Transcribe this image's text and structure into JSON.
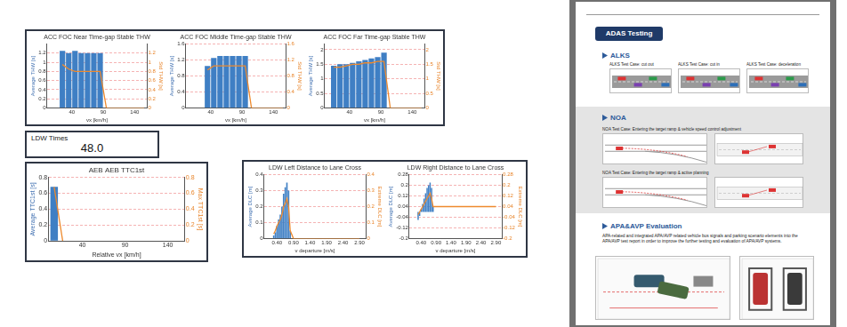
{
  "chart_data": [
    {
      "type": "bar",
      "title": "ACC FOC Near Time-gap Stable THW",
      "xlabel": "vx [km/h]",
      "ylabel": "Average THW [s]",
      "y2label": "Std THW [s]",
      "x": [
        25,
        35,
        45,
        55,
        65,
        75,
        85,
        95,
        105,
        115,
        125,
        135,
        145,
        155
      ],
      "series": [
        {
          "type": "bar",
          "color": "#3f7fc4",
          "values": [
            1.25,
            1.2,
            1.25,
            1.2,
            1.2,
            1.2,
            1.2,
            0,
            0,
            0,
            0,
            0,
            0,
            0
          ]
        },
        {
          "type": "line",
          "color": "#ee8a2e",
          "axis": "y2",
          "values": [
            0.95,
            0.85,
            0.8,
            0.8,
            0.8,
            0.8,
            0.8,
            0,
            0,
            0,
            0,
            0,
            0,
            0
          ]
        }
      ],
      "xlim": [
        0,
        160
      ],
      "xticks": [
        40,
        90,
        140
      ],
      "ylim": [
        0,
        1.4
      ],
      "yticks": [
        0,
        0.2,
        0.4,
        0.6,
        0.8,
        1,
        1.2
      ],
      "y2lim": [
        0,
        1.4
      ],
      "y2ticks": [
        0,
        0.2,
        0.4,
        0.6,
        0.8,
        1,
        1.2
      ],
      "grid": true
    },
    {
      "type": "bar",
      "title": "ACC FOC Middle Time-gap Stable THW",
      "xlabel": "vx [km/h]",
      "ylabel": "Average THW [s]",
      "y2label": "Std THW [s]",
      "x": [
        25,
        35,
        45,
        55,
        65,
        75,
        85,
        95,
        105,
        115,
        125,
        135,
        145,
        155
      ],
      "series": [
        {
          "type": "bar",
          "color": "#3f7fc4",
          "values": [
            null,
            1.05,
            1.25,
            1.3,
            1.3,
            1.3,
            1.3,
            1.3,
            0,
            0,
            0,
            0,
            0,
            0
          ]
        },
        {
          "type": "line",
          "color": "#ee8a2e",
          "axis": "y2",
          "values": [
            null,
            0.95,
            1.05,
            1.05,
            1.05,
            1.05,
            1.05,
            1.05,
            0,
            0,
            0,
            0,
            0,
            0
          ]
        }
      ],
      "xlim": [
        0,
        160
      ],
      "xticks": [
        40,
        90,
        140
      ],
      "ylim": [
        0,
        1.6
      ],
      "yticks": [
        0,
        0.4,
        0.8,
        1.2,
        1.6
      ],
      "y2lim": [
        0,
        1.6
      ],
      "y2ticks": [
        0,
        0.4,
        0.8,
        1.2,
        1.6
      ],
      "grid": true
    },
    {
      "type": "bar",
      "title": "ACC FOC Far Time-gap Stable THW",
      "xlabel": "vx [km/h]",
      "ylabel": "Average THW [s]",
      "y2label": "Std THW [s]",
      "x": [
        15,
        25,
        35,
        45,
        55,
        65,
        75,
        85,
        95,
        105,
        115,
        125,
        135,
        145,
        155
      ],
      "series": [
        {
          "type": "bar",
          "color": "#3f7fc4",
          "values": [
            1.45,
            1.5,
            1.5,
            1.55,
            1.6,
            1.65,
            1.7,
            1.75,
            1.9,
            0,
            0,
            0,
            0,
            0,
            0
          ]
        },
        {
          "type": "line",
          "color": "#ee8a2e",
          "axis": "y2",
          "values": [
            1.4,
            1.4,
            1.45,
            1.5,
            1.5,
            1.55,
            1.55,
            1.6,
            1.6,
            0,
            0,
            0,
            0,
            0,
            0
          ]
        }
      ],
      "xlim": [
        0,
        160
      ],
      "xticks": [
        40,
        90,
        140
      ],
      "ylim": [
        0,
        2.2
      ],
      "yticks": [
        0,
        0.5,
        1,
        1.5,
        2
      ],
      "y2lim": [
        0,
        2.2
      ],
      "y2ticks": [
        0,
        0.5,
        1,
        1.5,
        2
      ],
      "grid": true
    },
    {
      "type": "bar",
      "title": "AEB AEB TTC1st",
      "xlabel": "Relative vx [km/h]",
      "ylabel": "Average TTC1st [s]",
      "y2label": "Max TTC1st [s]",
      "x": [
        7,
        17
      ],
      "series": [
        {
          "type": "bar",
          "color": "#3f7fc4",
          "values": [
            0.68,
            0
          ]
        },
        {
          "type": "line",
          "color": "#ee8a2e",
          "axis": "y2",
          "values": [
            0.68,
            0
          ]
        }
      ],
      "xlim": [
        0,
        160
      ],
      "xticks": [
        40,
        90,
        140
      ],
      "ylim": [
        0,
        0.8
      ],
      "yticks": [
        0,
        0.2,
        0.4,
        0.6,
        0.8
      ],
      "y2lim": [
        0,
        0.8
      ],
      "y2ticks": [
        0,
        0.2,
        0.4,
        0.6,
        0.8
      ],
      "grid": true
    },
    {
      "type": "bar",
      "title": "LDW Left Distance to Lane Cross",
      "xlabel": "v departure [m/s]",
      "ylabel": "Average DLC [m]",
      "y2label": "Extreme DLC [m]",
      "x": [
        0.3,
        0.35,
        0.4,
        0.45,
        0.5,
        0.55,
        0.6,
        0.65,
        0.7,
        0.75,
        0.8,
        0.9,
        1.4,
        1.9,
        2.4,
        2.9
      ],
      "series": [
        {
          "type": "bar",
          "color": "#3f7fc4",
          "values": [
            0.02,
            0.04,
            0.08,
            0.12,
            0.15,
            0.2,
            0.28,
            0.32,
            0.35,
            0.3,
            0.05,
            0,
            0,
            0,
            0,
            0
          ]
        },
        {
          "type": "line",
          "color": "#ee8a2e",
          "axis": "y2",
          "values": [
            0.03,
            0.05,
            0.08,
            0.1,
            0.12,
            0.15,
            0.2,
            0.22,
            0.25,
            0.2,
            0.05,
            0,
            0,
            0,
            0,
            0
          ]
        }
      ],
      "xlim": [
        0,
        3.1
      ],
      "xticks": [
        {
          "value": 0.4,
          "label": "0.40"
        },
        {
          "value": 0.9,
          "label": "0.90"
        },
        {
          "value": 1.4,
          "label": "1.40"
        },
        {
          "value": 1.9,
          "label": "1.90"
        },
        {
          "value": 2.4,
          "label": "2.40"
        },
        {
          "value": 2.9,
          "label": "2.90"
        }
      ],
      "ylim": [
        0,
        0.4
      ],
      "yticks": [
        0,
        0.1,
        0.2,
        0.3,
        0.4
      ],
      "y2lim": [
        0,
        0.4
      ],
      "y2ticks": [
        0,
        0.1,
        0.2,
        0.3,
        0.4
      ],
      "grid": true
    },
    {
      "type": "bar",
      "title": "LDW Right Distance to Lane Cross",
      "xlabel": "v departure [m/s]",
      "ylabel": "Average DLC [m]",
      "y2label": "Extreme DLC [m]",
      "x": [
        0.3,
        0.35,
        0.4,
        0.45,
        0.5,
        0.55,
        0.6,
        0.65,
        0.7,
        0.75,
        0.8,
        0.9,
        1.4,
        1.9,
        2.4,
        2.9
      ],
      "series": [
        {
          "type": "bar",
          "color": "#3f7fc4",
          "values": [
            -0.06,
            -0.03,
            0.02,
            0.06,
            0.1,
            0.14,
            0.18,
            0.2,
            0.22,
            0.18,
            0.04,
            0,
            0,
            0,
            0,
            0
          ]
        },
        {
          "type": "line",
          "color": "#ee8a2e",
          "axis": "y2",
          "values": [
            -0.02,
            0,
            0.02,
            0.04,
            0.06,
            0.08,
            0.1,
            0.12,
            0.14,
            0.1,
            0.04,
            0.04,
            0.04,
            0.04,
            0.04,
            0.04
          ]
        }
      ],
      "xlim": [
        0,
        3.1
      ],
      "xticks": [
        {
          "value": 0.4,
          "label": "0.40"
        },
        {
          "value": 0.9,
          "label": "0.90"
        },
        {
          "value": 1.4,
          "label": "1.40"
        },
        {
          "value": 1.9,
          "label": "1.90"
        },
        {
          "value": 2.4,
          "label": "2.40"
        },
        {
          "value": 2.9,
          "label": "2.90"
        }
      ],
      "ylim": [
        -0.2,
        0.28
      ],
      "yticks": [
        -0.2,
        -0.12,
        -0.04,
        0.04,
        0.12,
        0.2,
        0.28
      ],
      "y2lim": [
        -0.2,
        0.28
      ],
      "y2ticks": [
        -0.2,
        -0.12,
        -0.04,
        0.04,
        0.12,
        0.2,
        0.28
      ],
      "grid": true
    }
  ],
  "ldw_times": {
    "title": "LDW Times",
    "value": "48.0"
  },
  "document": {
    "badge": "ADAS Testing",
    "sections": [
      {
        "title": "ALKS",
        "figures": [
          "ALKS Test Case: cut out",
          "ALKS Test Case: cut in",
          "ALKS Test Case: deceleration"
        ]
      },
      {
        "title": "NOA",
        "figures": [
          "NOA Test Case: Entering the target ramp & vehicle speed control adjustment",
          "NOA Test Case: Entering the target ramp & active planning"
        ]
      },
      {
        "title": "APA&AVP Evaluation",
        "text": "APA-related and integrated APA/AVP related vehicle bus signals and parking scenario elements into the APA/AVP test report in order to improve the further testing and evaluation of APA/AVP systems."
      }
    ]
  }
}
